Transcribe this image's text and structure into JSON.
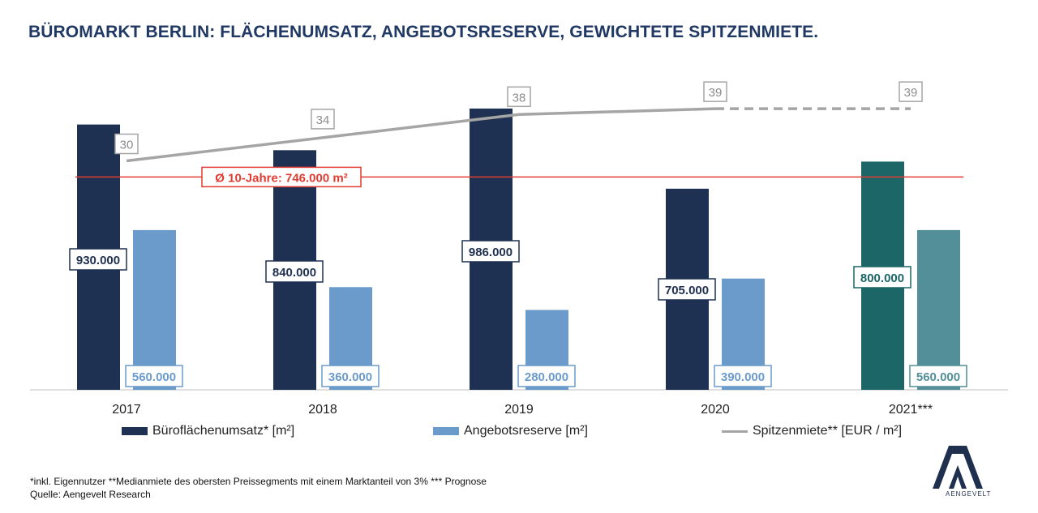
{
  "title": "BÜROMARKT BERLIN: FLÄCHENUMSATZ, ANGEBOTSRESERVE, GEWICHTETE SPITZENMIETE.",
  "chart_data": {
    "type": "bar",
    "categories": [
      "2017",
      "2018",
      "2019",
      "2020",
      "2021***"
    ],
    "series": [
      {
        "name": "Büroflächenumsatz* [m²]",
        "type": "bar",
        "values": [
          930000,
          840000,
          986000,
          705000,
          800000
        ],
        "labels": [
          "930.000",
          "840.000",
          "986.000",
          "705.000",
          "800.000"
        ]
      },
      {
        "name": "Angebotsreserve [m²]",
        "type": "bar",
        "values": [
          560000,
          360000,
          280000,
          390000,
          560000
        ],
        "labels": [
          "560.000",
          "360.000",
          "280.000",
          "390.000",
          "560.000"
        ]
      },
      {
        "name": "Spitzenmiete** [EUR / m²]",
        "type": "line",
        "values": [
          30,
          34,
          38,
          39,
          39
        ],
        "labels": [
          "30",
          "34",
          "38",
          "39",
          "39"
        ],
        "forecast_from_index": 3
      }
    ],
    "reference_line": {
      "value": 746000,
      "label": "Ø 10-Jahre: 746.000 m²"
    },
    "ylim": [
      0,
      1000000
    ],
    "forecast_category_index": 4,
    "grid": false,
    "legend_position": "bottom",
    "colors": {
      "umsatz": "#1f3152",
      "reserve": "#6a9bcb",
      "umsatz_forecast": "#1c6667",
      "reserve_forecast": "#528f99",
      "miete": "#a5a5a5",
      "reference": "#e03c31"
    }
  },
  "legend": {
    "umsatz": "Büroflächenumsatz* [m²]",
    "reserve": "Angebotsreserve [m²]",
    "miete": "Spitzenmiete** [EUR / m²]"
  },
  "footnote": "*inkl. Eigennutzer **Medianmiete des obersten Preissegments mit einem Marktanteil von 3% *** Prognose",
  "source": "Quelle: Aengevelt Research",
  "logo_text": "AENGEVELT"
}
